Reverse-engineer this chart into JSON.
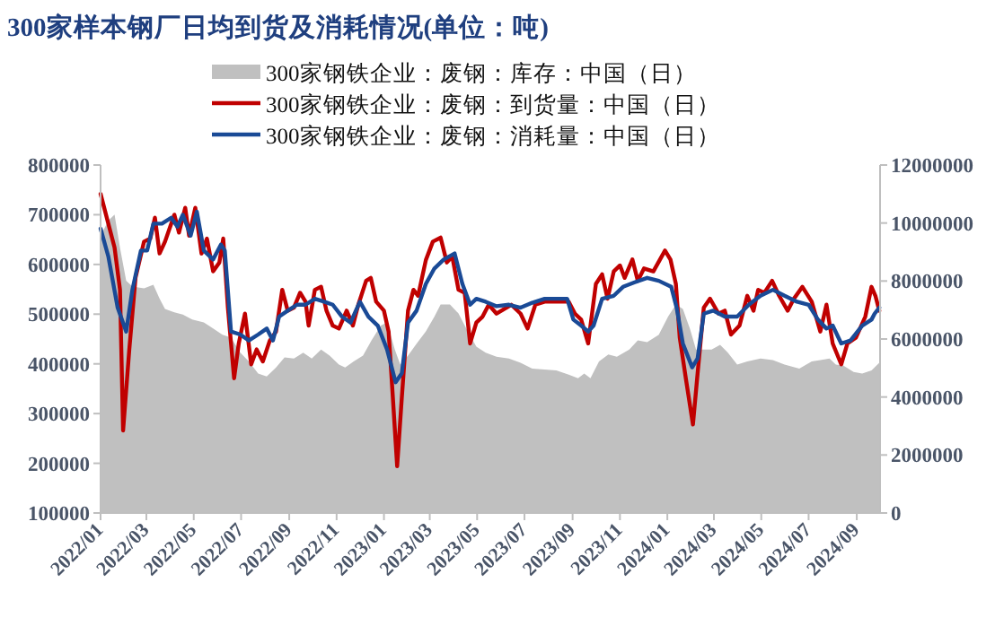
{
  "chart_data": {
    "type": "line",
    "title": "300家样本钢厂日均到货及消耗情况(单位：吨)",
    "legend": "top",
    "xlim": [
      "2022-01-01",
      "2024-10-01"
    ],
    "xticks": [
      {
        "value": "2022-01",
        "label": "2022/01"
      },
      {
        "value": "2022-03",
        "label": "2022/03"
      },
      {
        "value": "2022-05",
        "label": "2022/05"
      },
      {
        "value": "2022-07",
        "label": "2022/07"
      },
      {
        "value": "2022-09",
        "label": "2022/09"
      },
      {
        "value": "2022-11",
        "label": "2022/11"
      },
      {
        "value": "2023-01",
        "label": "2023/01"
      },
      {
        "value": "2023-03",
        "label": "2023/03"
      },
      {
        "value": "2023-05",
        "label": "2023/05"
      },
      {
        "value": "2023-07",
        "label": "2023/07"
      },
      {
        "value": "2023-09",
        "label": "2023/09"
      },
      {
        "value": "2023-11",
        "label": "2023/11"
      },
      {
        "value": "2024-01",
        "label": "2024/01"
      },
      {
        "value": "2024-03",
        "label": "2024/03"
      },
      {
        "value": "2024-05",
        "label": "2024/05"
      },
      {
        "value": "2024-07",
        "label": "2024/07"
      },
      {
        "value": "2024-09",
        "label": "2024/09"
      }
    ],
    "ylim": [
      100000,
      800000
    ],
    "yticks": [
      100000,
      200000,
      300000,
      400000,
      500000,
      600000,
      700000,
      800000
    ],
    "y2lim": [
      0,
      12000000
    ],
    "y2ticks": [
      0,
      2000000,
      4000000,
      6000000,
      8000000,
      10000000,
      12000000
    ],
    "series": [
      {
        "name": "300家钢铁企业：废钢：库存：中国（日）",
        "type": "area",
        "axis": "y2",
        "color": "#c0c0c0",
        "x": [
          "2022-01-01",
          "2022-01-11",
          "2022-01-19",
          "2022-01-26",
          "2022-02-03",
          "2022-02-11",
          "2022-02-26",
          "2022-03-10",
          "2022-03-18",
          "2022-03-25",
          "2022-04-06",
          "2022-04-17",
          "2022-04-29",
          "2022-05-14",
          "2022-05-26",
          "2022-06-07",
          "2022-06-18",
          "2022-06-30",
          "2022-07-11",
          "2022-07-23",
          "2022-08-03",
          "2022-08-15",
          "2022-08-26",
          "2022-09-07",
          "2022-09-19",
          "2022-09-30",
          "2022-10-12",
          "2022-10-23",
          "2022-11-04",
          "2022-11-12",
          "2022-11-23",
          "2022-12-05",
          "2022-12-16",
          "2022-12-28",
          "2023-01-05",
          "2023-01-15",
          "2023-01-22",
          "2023-02-01",
          "2023-02-12",
          "2023-02-24",
          "2023-03-07",
          "2023-03-15",
          "2023-03-27",
          "2023-04-07",
          "2023-04-19",
          "2023-04-30",
          "2023-05-12",
          "2023-05-26",
          "2023-06-11",
          "2023-06-26",
          "2023-07-11",
          "2023-08-11",
          "2023-08-27",
          "2023-09-08",
          "2023-09-16",
          "2023-09-24",
          "2023-10-05",
          "2023-10-17",
          "2023-10-28",
          "2023-11-13",
          "2023-11-24",
          "2023-12-06",
          "2023-12-21",
          "2024-01-02",
          "2024-01-12",
          "2024-01-21",
          "2024-01-30",
          "2024-02-07",
          "2024-02-15",
          "2024-02-27",
          "2024-03-09",
          "2024-03-19",
          "2024-03-31",
          "2024-04-13",
          "2024-04-30",
          "2024-05-16",
          "2024-05-31",
          "2024-06-19",
          "2024-07-05",
          "2024-07-16",
          "2024-07-28",
          "2024-08-05",
          "2024-08-15",
          "2024-08-28",
          "2024-09-08",
          "2024-09-20",
          "2024-09-30"
        ],
        "values": [
          9560000,
          10080000,
          10290000,
          9150000,
          8010000,
          7810000,
          7750000,
          7870000,
          7390000,
          7040000,
          6920000,
          6840000,
          6670000,
          6570000,
          6360000,
          6150000,
          6050000,
          5530000,
          5230000,
          4810000,
          4710000,
          5020000,
          5370000,
          5330000,
          5530000,
          5330000,
          5640000,
          5430000,
          5120000,
          5020000,
          5230000,
          5430000,
          5950000,
          6460000,
          6570000,
          5640000,
          5120000,
          5430000,
          5840000,
          6260000,
          6770000,
          7190000,
          7190000,
          6880000,
          6260000,
          5740000,
          5530000,
          5390000,
          5330000,
          5180000,
          4980000,
          4920000,
          4770000,
          4650000,
          4810000,
          4650000,
          5230000,
          5470000,
          5390000,
          5640000,
          5950000,
          5890000,
          6150000,
          6770000,
          7190000,
          7040000,
          6360000,
          5640000,
          5640000,
          5640000,
          5800000,
          5530000,
          5120000,
          5230000,
          5330000,
          5270000,
          5120000,
          4980000,
          5230000,
          5270000,
          5330000,
          5120000,
          5080000,
          4860000,
          4810000,
          4920000,
          5180000
        ]
      },
      {
        "name": "300家钢铁企业：废钢：到货量：中国（日）",
        "type": "line",
        "color": "#c00000",
        "x": [
          "2022-01-01",
          "2022-01-11",
          "2022-01-19",
          "2022-01-26",
          "2022-01-30",
          "2022-02-07",
          "2022-02-15",
          "2022-02-26",
          "2022-03-06",
          "2022-03-12",
          "2022-03-18",
          "2022-03-25",
          "2022-04-06",
          "2022-04-12",
          "2022-04-20",
          "2022-04-25",
          "2022-05-03",
          "2022-05-11",
          "2022-05-18",
          "2022-05-26",
          "2022-06-03",
          "2022-06-08",
          "2022-06-14",
          "2022-06-22",
          "2022-06-28",
          "2022-07-06",
          "2022-07-14",
          "2022-07-21",
          "2022-07-29",
          "2022-08-07",
          "2022-08-15",
          "2022-08-23",
          "2022-08-30",
          "2022-09-07",
          "2022-09-15",
          "2022-09-22",
          "2022-09-26",
          "2022-10-04",
          "2022-10-12",
          "2022-10-19",
          "2022-10-27",
          "2022-11-04",
          "2022-11-14",
          "2022-11-22",
          "2022-11-29",
          "2022-12-09",
          "2022-12-15",
          "2022-12-22",
          "2023-01-01",
          "2023-01-07",
          "2023-01-12",
          "2023-01-18",
          "2023-01-24",
          "2023-02-01",
          "2023-02-08",
          "2023-02-14",
          "2023-02-24",
          "2023-03-05",
          "2023-03-15",
          "2023-03-23",
          "2023-03-30",
          "2023-04-07",
          "2023-04-15",
          "2023-04-22",
          "2023-04-30",
          "2023-05-08",
          "2023-05-16",
          "2023-05-26",
          "2023-06-14",
          "2023-06-26",
          "2023-07-05",
          "2023-07-15",
          "2023-07-27",
          "2023-08-11",
          "2023-08-27",
          "2023-09-04",
          "2023-09-12",
          "2023-09-21",
          "2023-10-01",
          "2023-10-09",
          "2023-10-16",
          "2023-10-24",
          "2023-11-01",
          "2023-11-07",
          "2023-11-17",
          "2023-11-24",
          "2023-12-02",
          "2023-12-14",
          "2023-12-29",
          "2024-01-05",
          "2024-01-12",
          "2024-01-17",
          "2024-01-25",
          "2024-02-03",
          "2024-02-09",
          "2024-02-17",
          "2024-02-25",
          "2024-03-07",
          "2024-03-15",
          "2024-03-23",
          "2024-04-03",
          "2024-04-13",
          "2024-04-21",
          "2024-04-27",
          "2024-05-05",
          "2024-05-15",
          "2024-05-24",
          "2024-06-04",
          "2024-06-12",
          "2024-06-23",
          "2024-07-05",
          "2024-07-16",
          "2024-07-24",
          "2024-08-01",
          "2024-08-12",
          "2024-08-20",
          "2024-08-31",
          "2024-09-12",
          "2024-09-20",
          "2024-09-25",
          "2024-09-30"
        ],
        "values": [
          742000,
          682000,
          634000,
          549000,
          266000,
          429000,
          573000,
          646000,
          652000,
          694000,
          622000,
          646000,
          700000,
          664000,
          714000,
          658000,
          714000,
          622000,
          652000,
          586000,
          604000,
          652000,
          513000,
          371000,
          441000,
          501000,
          399000,
          429000,
          405000,
          447000,
          465000,
          549000,
          507000,
          513000,
          543000,
          525000,
          477000,
          549000,
          555000,
          507000,
          477000,
          471000,
          507000,
          477000,
          519000,
          567000,
          573000,
          525000,
          507000,
          465000,
          344000,
          194000,
          332000,
          507000,
          549000,
          537000,
          609000,
          646000,
          654000,
          604000,
          616000,
          549000,
          543000,
          441000,
          483000,
          495000,
          519000,
          501000,
          519000,
          501000,
          471000,
          519000,
          525000,
          525000,
          525000,
          501000,
          489000,
          441000,
          561000,
          580000,
          531000,
          586000,
          598000,
          573000,
          610000,
          567000,
          592000,
          586000,
          628000,
          610000,
          561000,
          453000,
          369000,
          278000,
          381000,
          513000,
          531000,
          501000,
          507000,
          459000,
          477000,
          537000,
          507000,
          549000,
          543000,
          567000,
          537000,
          507000,
          531000,
          555000,
          525000,
          465000,
          519000,
          441000,
          399000,
          441000,
          453000,
          495000,
          555000,
          537000,
          507000
        ]
      },
      {
        "name": "300家钢铁企业：废钢：消耗量：中国（日）",
        "type": "line",
        "color": "#1a4a96",
        "x": [
          "2022-01-01",
          "2022-01-11",
          "2022-01-23",
          "2022-02-03",
          "2022-02-11",
          "2022-02-22",
          "2022-03-02",
          "2022-03-10",
          "2022-03-21",
          "2022-04-02",
          "2022-04-10",
          "2022-04-17",
          "2022-04-27",
          "2022-05-05",
          "2022-05-14",
          "2022-05-26",
          "2022-06-05",
          "2022-06-10",
          "2022-06-18",
          "2022-06-30",
          "2022-07-11",
          "2022-07-23",
          "2022-08-03",
          "2022-08-11",
          "2022-08-19",
          "2022-08-30",
          "2022-09-11",
          "2022-09-22",
          "2022-10-04",
          "2022-10-16",
          "2022-10-27",
          "2022-11-08",
          "2022-11-19",
          "2022-12-01",
          "2022-12-12",
          "2022-12-24",
          "2023-01-05",
          "2023-01-16",
          "2023-01-24",
          "2023-02-01",
          "2023-02-12",
          "2023-02-24",
          "2023-03-07",
          "2023-03-19",
          "2023-04-02",
          "2023-04-12",
          "2023-04-22",
          "2023-04-30",
          "2023-05-12",
          "2023-05-26",
          "2023-06-11",
          "2023-06-26",
          "2023-07-11",
          "2023-07-27",
          "2023-08-11",
          "2023-08-25",
          "2023-09-02",
          "2023-09-12",
          "2023-09-21",
          "2023-09-28",
          "2023-10-09",
          "2023-10-24",
          "2023-11-05",
          "2023-11-20",
          "2023-12-06",
          "2023-12-21",
          "2024-01-06",
          "2024-01-13",
          "2024-01-21",
          "2024-02-02",
          "2024-02-09",
          "2024-02-17",
          "2024-02-29",
          "2024-03-15",
          "2024-03-31",
          "2024-04-15",
          "2024-04-30",
          "2024-05-16",
          "2024-05-31",
          "2024-06-16",
          "2024-07-01",
          "2024-07-13",
          "2024-07-24",
          "2024-08-01",
          "2024-08-12",
          "2024-08-24",
          "2024-09-08",
          "2024-09-20",
          "2024-09-24",
          "2024-09-30"
        ],
        "values": [
          672000,
          616000,
          513000,
          465000,
          549000,
          628000,
          628000,
          682000,
          682000,
          694000,
          676000,
          700000,
          658000,
          706000,
          628000,
          610000,
          640000,
          628000,
          465000,
          459000,
          447000,
          459000,
          471000,
          447000,
          495000,
          507000,
          519000,
          519000,
          531000,
          525000,
          519000,
          495000,
          483000,
          525000,
          495000,
          477000,
          429000,
          363000,
          381000,
          483000,
          507000,
          561000,
          592000,
          610000,
          622000,
          561000,
          519000,
          531000,
          525000,
          516000,
          519000,
          513000,
          523000,
          531000,
          531000,
          531000,
          489000,
          477000,
          465000,
          477000,
          531000,
          537000,
          555000,
          564000,
          573000,
          567000,
          555000,
          513000,
          441000,
          393000,
          411000,
          501000,
          507000,
          495000,
          495000,
          519000,
          537000,
          549000,
          537000,
          525000,
          519000,
          489000,
          471000,
          477000,
          441000,
          447000,
          477000,
          489000,
          501000,
          513000
        ]
      }
    ]
  }
}
